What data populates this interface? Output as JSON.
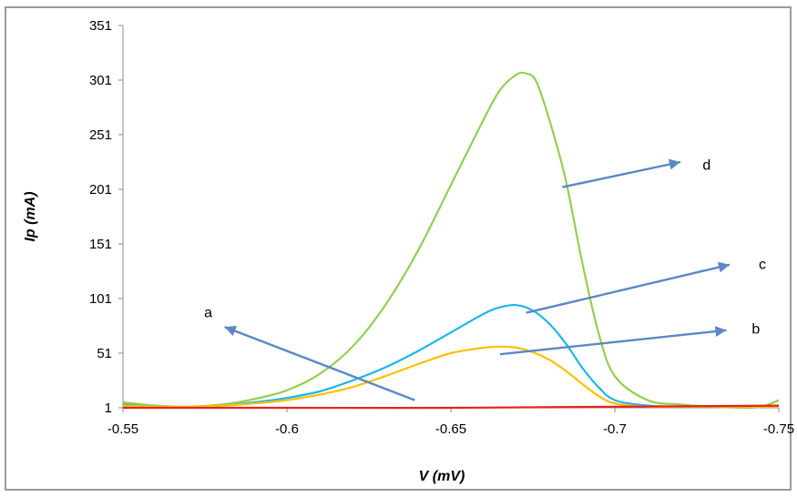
{
  "chart_data": {
    "type": "line",
    "title": "",
    "xlabel": "V (mV)",
    "ylabel": "Ip (mA)",
    "xlim": [
      -0.55,
      -0.75
    ],
    "ylim": [
      1,
      351
    ],
    "x_ticks": [
      "-0.55",
      "-0.6",
      "-0.65",
      "-0.7",
      "-0.75"
    ],
    "y_ticks": [
      "1",
      "51",
      "101",
      "151",
      "201",
      "251",
      "301",
      "351"
    ],
    "grid": false,
    "series": [
      {
        "color": "#92D050",
        "x": [
          -0.55,
          -0.56,
          -0.57,
          -0.58,
          -0.59,
          -0.6,
          -0.61,
          -0.62,
          -0.63,
          -0.64,
          -0.65,
          -0.66,
          -0.665,
          -0.67,
          -0.673,
          -0.676,
          -0.68,
          -0.685,
          -0.69,
          -0.695,
          -0.7,
          -0.71,
          -0.72,
          -0.73,
          -0.74,
          -0.745,
          -0.75
        ],
        "y": [
          6,
          3,
          2,
          4,
          9,
          17,
          32,
          57,
          95,
          145,
          205,
          265,
          292,
          306,
          307,
          300,
          265,
          210,
          135,
          70,
          30,
          8,
          4,
          2,
          1,
          2,
          8
        ]
      },
      {
        "color": "#1FB5EA",
        "x": [
          -0.55,
          -0.56,
          -0.57,
          -0.58,
          -0.59,
          -0.6,
          -0.61,
          -0.62,
          -0.63,
          -0.64,
          -0.65,
          -0.66,
          -0.665,
          -0.67,
          -0.675,
          -0.68,
          -0.685,
          -0.69,
          -0.695,
          -0.7,
          -0.71,
          -0.72,
          -0.73,
          -0.75
        ],
        "y": [
          4,
          2,
          2,
          3,
          6,
          10,
          16,
          26,
          38,
          53,
          70,
          87,
          93,
          95,
          90,
          78,
          60,
          38,
          20,
          8,
          3,
          2,
          2,
          2
        ]
      },
      {
        "color": "#FFC000",
        "x": [
          -0.55,
          -0.56,
          -0.57,
          -0.58,
          -0.59,
          -0.6,
          -0.61,
          -0.62,
          -0.63,
          -0.64,
          -0.65,
          -0.66,
          -0.665,
          -0.67,
          -0.675,
          -0.68,
          -0.685,
          -0.69,
          -0.695,
          -0.7,
          -0.71,
          -0.72,
          -0.73,
          -0.75
        ],
        "y": [
          3,
          2,
          2,
          3,
          5,
          8,
          13,
          20,
          30,
          41,
          51,
          56,
          57,
          56,
          52,
          45,
          35,
          23,
          12,
          5,
          2,
          2,
          2,
          2
        ]
      },
      {
        "color": "#E8221C",
        "x": [
          -0.55,
          -0.6,
          -0.65,
          -0.7,
          -0.75
        ],
        "y": [
          1,
          1,
          1,
          2,
          3
        ]
      }
    ],
    "annotations": [
      {
        "label": "a",
        "arrow_from": [
          -0.639,
          8
        ],
        "arrow_to": [
          -0.581,
          75
        ],
        "label_at": [
          -0.576,
          89
        ]
      },
      {
        "label": "b",
        "arrow_from": [
          -0.665,
          50
        ],
        "arrow_to": [
          -0.734,
          72
        ],
        "label_at": [
          -0.743,
          74
        ]
      },
      {
        "label": "c",
        "arrow_from": [
          -0.673,
          88
        ],
        "arrow_to": [
          -0.735,
          132
        ],
        "label_at": [
          -0.745,
          133
        ]
      },
      {
        "label": "d",
        "arrow_from": [
          -0.684,
          203
        ],
        "arrow_to": [
          -0.72,
          226
        ],
        "label_at": [
          -0.728,
          224
        ]
      }
    ],
    "arrow_color": "#5B87C5"
  }
}
